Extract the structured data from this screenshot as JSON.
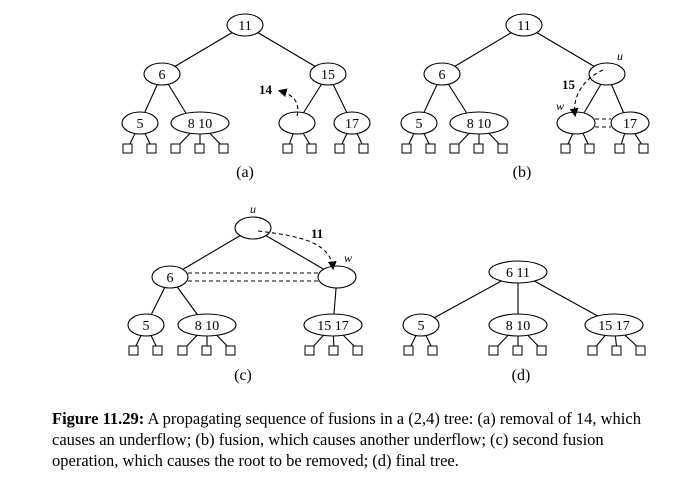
{
  "panels": [
    {
      "label": "(a)",
      "arrow_key": "14"
    },
    {
      "label": "(b)",
      "arrow_key": "15",
      "u": "u",
      "w": "w"
    },
    {
      "label": "(c)",
      "arrow_key": "11",
      "u": "u",
      "w": "w"
    },
    {
      "label": "(d)"
    }
  ],
  "caption": {
    "label": "Figure 11.29:",
    "text": " A propagating sequence of fusions in a (2,4) tree: (a) removal of 14, which causes an underflow; (b) fusion, which causes another underflow; (c) second fusion operation, which causes the root to be removed; (d) final tree."
  }
}
